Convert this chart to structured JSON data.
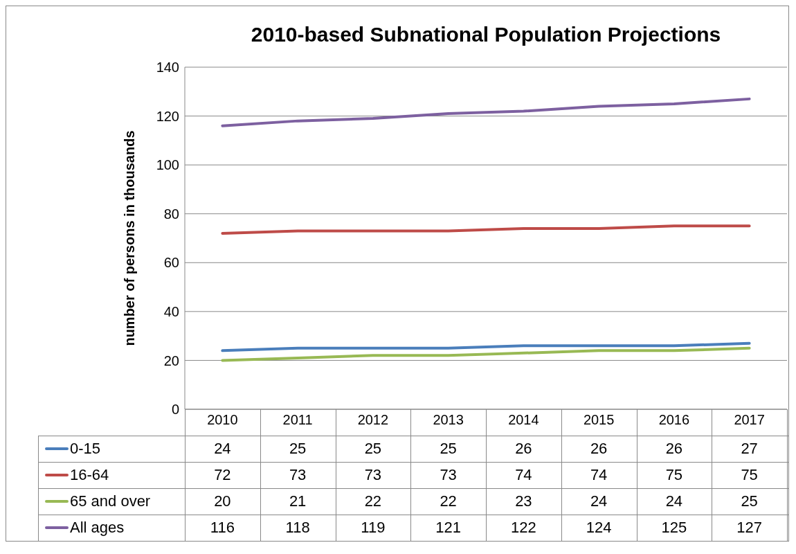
{
  "chart_data": {
    "type": "line",
    "title": "2010-based Subnational Population Projections",
    "ylabel": "number of persons in thousands",
    "categories": [
      "2010",
      "2011",
      "2012",
      "2013",
      "2014",
      "2015",
      "2016",
      "2017"
    ],
    "series": [
      {
        "name": "0-15",
        "color": "#4a7ebb",
        "values": [
          24,
          25,
          25,
          25,
          26,
          26,
          26,
          27
        ]
      },
      {
        "name": "16-64",
        "color": "#be4b48",
        "values": [
          72,
          73,
          73,
          73,
          74,
          74,
          75,
          75
        ]
      },
      {
        "name": "65 and over",
        "color": "#98b954",
        "values": [
          20,
          21,
          22,
          22,
          23,
          24,
          24,
          25
        ]
      },
      {
        "name": "All ages",
        "color": "#7d60a0",
        "values": [
          116,
          118,
          119,
          121,
          122,
          124,
          125,
          127
        ]
      }
    ],
    "ylim": [
      0,
      140
    ],
    "yticks": [
      0,
      20,
      40,
      60,
      80,
      100,
      120,
      140
    ],
    "grid": "y",
    "legend": "bottom",
    "data_labels": true,
    "marker": "none",
    "line_style": "solid"
  }
}
